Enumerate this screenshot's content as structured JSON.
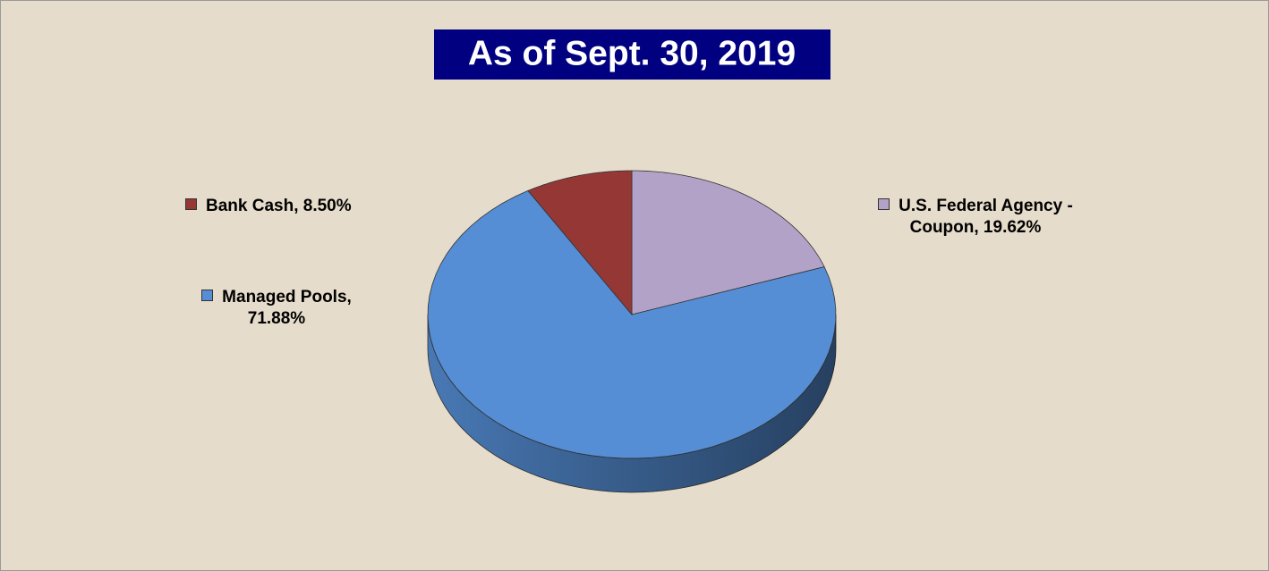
{
  "chart_data": {
    "type": "pie",
    "title": "As of Sept. 30, 2019",
    "values": [
      19.62,
      71.88,
      8.5
    ],
    "value_labels": [
      "U.S. Federal Agency - Coupon, 19.62%",
      "Managed Pools, 71.88%",
      "Bank Cash, 8.50%"
    ],
    "colors": [
      "#b3a2c7",
      "#558ed5",
      "#953735"
    ],
    "start_angle": 0,
    "direction": "clockwise",
    "three_d": true
  }
}
